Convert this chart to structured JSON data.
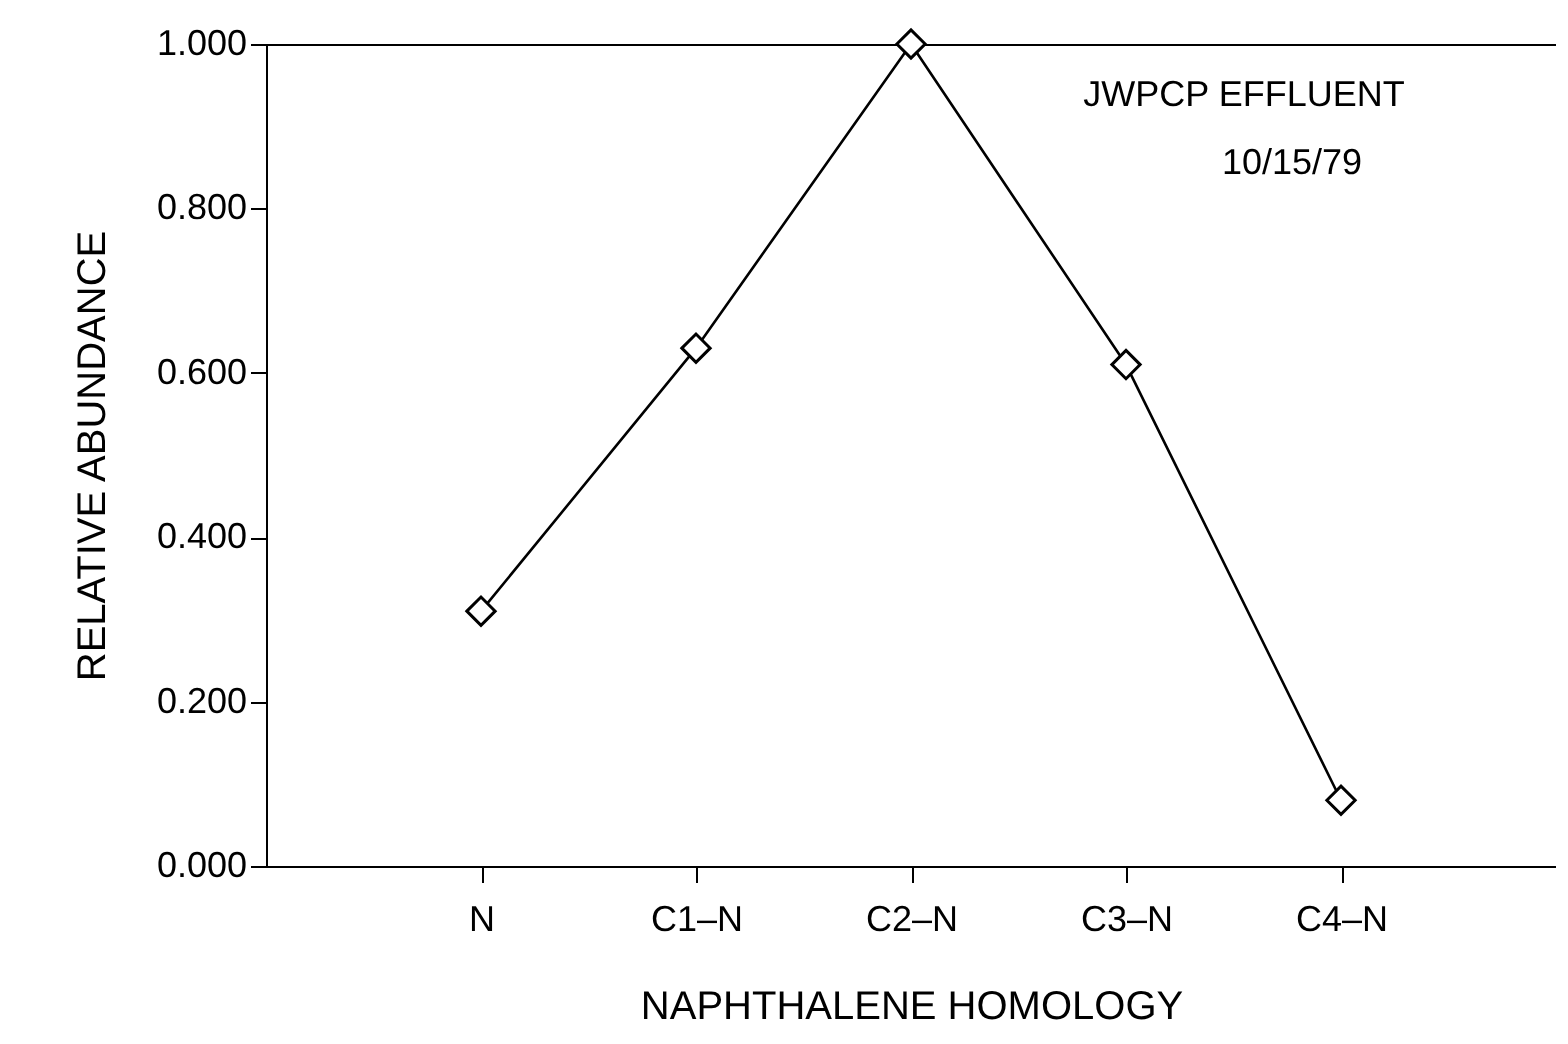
{
  "chart_data": {
    "type": "line",
    "xlabel": "NAPHTHALENE HOMOLOGY",
    "ylabel": "RELATIVE ABUNDANCE",
    "categories": [
      "N",
      "C1–N",
      "C2–N",
      "C3–N",
      "C4–N"
    ],
    "series": [
      {
        "color": "#000000",
        "values": [
          0.31,
          0.63,
          1.0,
          0.61,
          0.08
        ]
      }
    ],
    "ylim": [
      0,
      1
    ],
    "yticks": [
      {
        "value": 0,
        "label": "0.000"
      },
      {
        "value": 0.2,
        "label": "0.200"
      },
      {
        "value": 0.4,
        "label": "0.400"
      },
      {
        "value": 0.6,
        "label": "0.600"
      },
      {
        "value": 0.8,
        "label": "0.800"
      },
      {
        "value": 1,
        "label": "1.000"
      }
    ],
    "annotations": [
      "JWPCP EFFLUENT",
      "10/15/79"
    ],
    "marker": "diamond",
    "line_style": "solid",
    "grid": false
  }
}
